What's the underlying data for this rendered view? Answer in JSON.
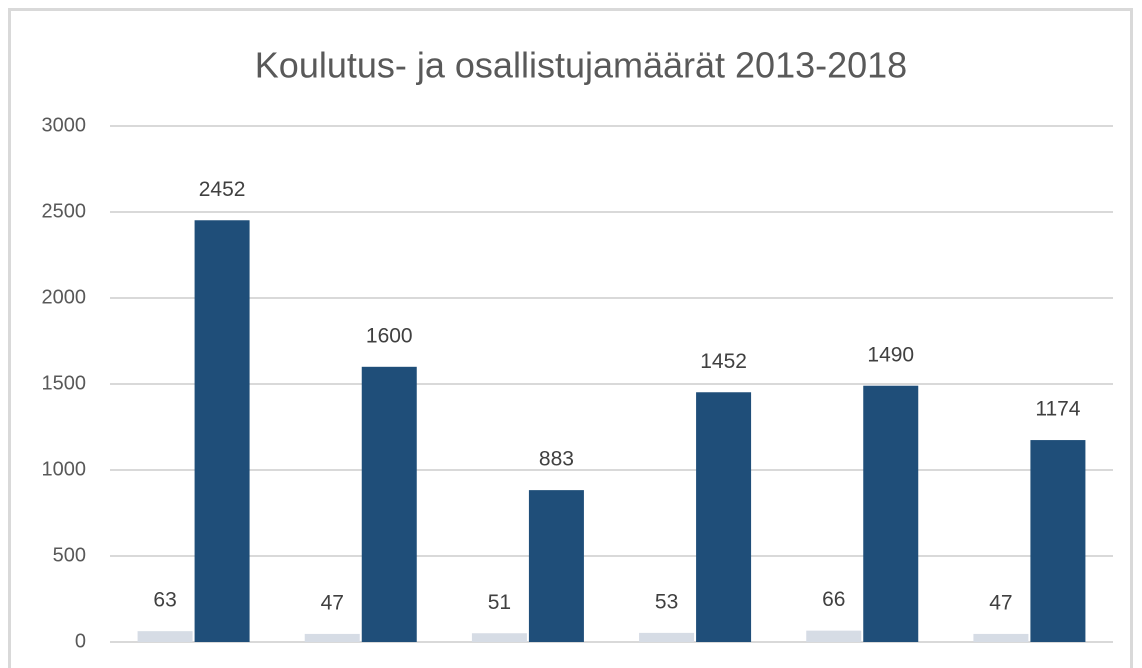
{
  "chart_data": {
    "type": "bar",
    "title": "Koulutus- ja osallistujamäärät 2013-2018",
    "categories": [
      null,
      null,
      null,
      null,
      null,
      null
    ],
    "series": [
      {
        "color": "#d6dce5",
        "values": [
          63,
          47,
          51,
          53,
          66,
          47
        ]
      },
      {
        "color": "#1f4e79",
        "values": [
          2452,
          1600,
          883,
          1452,
          1490,
          1174
        ]
      }
    ],
    "ylim": [
      0,
      3000
    ],
    "yticks": [
      0,
      500,
      1000,
      1500,
      2000,
      2500,
      3000
    ],
    "grid": true
  }
}
